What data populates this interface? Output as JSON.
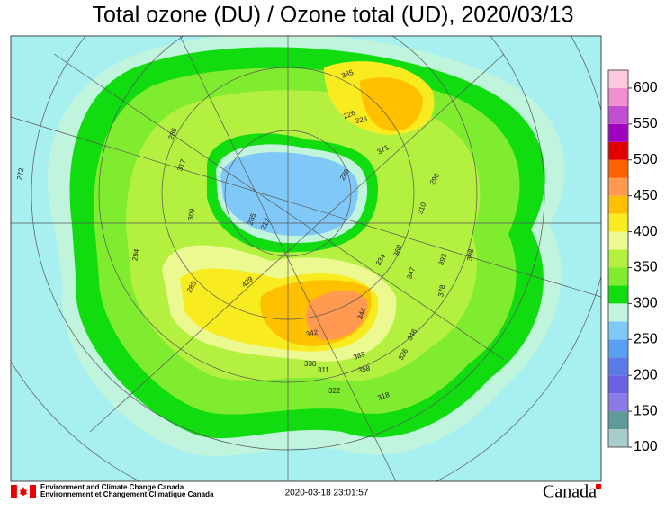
{
  "title": "Total ozone (DU) / Ozone total (UD), 2020/03/13",
  "legend": {
    "range": [
      100,
      625
    ],
    "ticks": [
      100,
      150,
      200,
      250,
      300,
      350,
      400,
      450,
      500,
      550,
      600
    ],
    "colors": [
      "#a8cdcd",
      "#5e9b9b",
      "#8a7ae6",
      "#6a60e0",
      "#5a7ae8",
      "#5aa0f0",
      "#80c8f8",
      "#c0f4dc",
      "#10dc10",
      "#80ec30",
      "#b4f040",
      "#ecf890",
      "#f8ec20",
      "#ffc000",
      "#ff9a50",
      "#ff6000",
      "#e00000",
      "#a000c0",
      "#c050d0",
      "#f090d0",
      "#ffc8e0"
    ]
  },
  "stations": [
    "272",
    "286",
    "317",
    "309",
    "294",
    "285",
    "265",
    "217",
    "280",
    "226",
    "371",
    "326",
    "296",
    "310",
    "334",
    "360",
    "347",
    "393",
    "398",
    "378",
    "429",
    "385",
    "342",
    "344",
    "346",
    "389",
    "358",
    "330",
    "311",
    "322",
    "318",
    "326"
  ],
  "footer": {
    "agency_en": "Environment and Climate Change Canada",
    "agency_fr": "Environnement et Changement Climatique Canada",
    "timestamp": "2020-03-18 23:01:57",
    "wordmark": "Canada"
  }
}
